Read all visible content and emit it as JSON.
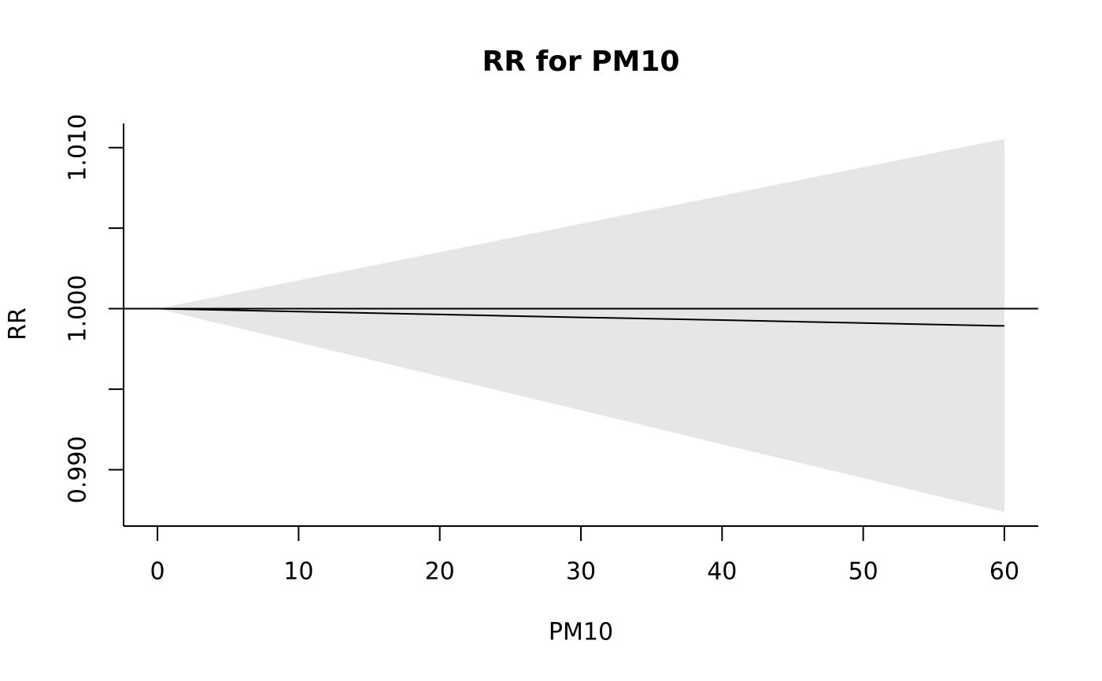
{
  "chart_data": {
    "type": "line",
    "title": "RR for PM10",
    "x_label": "PM10",
    "y_label": "RR",
    "x": [
      0,
      10,
      20,
      30,
      40,
      50,
      60
    ],
    "values": [
      1.0,
      0.99982,
      0.99964,
      0.99946,
      0.99929,
      0.99911,
      0.99893
    ],
    "lower": [
      1.0,
      0.9979,
      0.99579,
      0.99369,
      0.99158,
      0.98948,
      0.98737
    ],
    "upper": [
      1.0,
      1.00176,
      1.00351,
      1.00527,
      1.00702,
      1.00878,
      1.01054
    ],
    "color": "#000000",
    "band_color": "#e6e6e6",
    "reference_line": 1,
    "xlim": [
      -2.4,
      62.4
    ],
    "ylim": [
      0.9865,
      1.0115
    ],
    "xticks": [
      0,
      10,
      20,
      30,
      40,
      50,
      60
    ],
    "yticks": [
      {
        "value": 0.99,
        "label": "0.990"
      },
      {
        "value": 0.995,
        "label": null
      },
      {
        "value": 1.0,
        "label": "1.000"
      },
      {
        "value": 1.005,
        "label": null
      },
      {
        "value": 1.01,
        "label": "1.010"
      }
    ]
  }
}
